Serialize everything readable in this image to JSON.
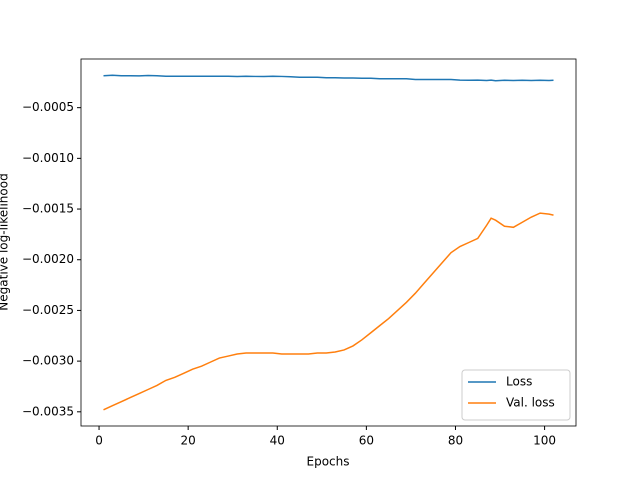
{
  "chart_data": {
    "type": "line",
    "x_label": "Epochs",
    "y_label": "Negative log-likelihood",
    "x": [
      1,
      3,
      5,
      7,
      9,
      11,
      13,
      15,
      17,
      19,
      21,
      23,
      25,
      27,
      29,
      31,
      33,
      35,
      37,
      39,
      41,
      43,
      45,
      47,
      49,
      51,
      53,
      55,
      57,
      59,
      61,
      63,
      65,
      67,
      69,
      71,
      73,
      75,
      77,
      79,
      81,
      83,
      85,
      87,
      88,
      89,
      91,
      93,
      95,
      97,
      99,
      101,
      102
    ],
    "series": [
      {
        "name": "Loss",
        "color": "#1f77b4",
        "values": [
          -0.000185,
          -0.00018,
          -0.000185,
          -0.000185,
          -0.000187,
          -0.000183,
          -0.000185,
          -0.00019,
          -0.00019,
          -0.00019,
          -0.00019,
          -0.00019,
          -0.00019,
          -0.00019,
          -0.00019,
          -0.000192,
          -0.00019,
          -0.000192,
          -0.000193,
          -0.00019,
          -0.000192,
          -0.000195,
          -0.0002,
          -0.0002,
          -0.0002,
          -0.000205,
          -0.000205,
          -0.000207,
          -0.000208,
          -0.00021,
          -0.00021,
          -0.000215,
          -0.000215,
          -0.000215,
          -0.000215,
          -0.000222,
          -0.000222,
          -0.000222,
          -0.000222,
          -0.000222,
          -0.000228,
          -0.00023,
          -0.000228,
          -0.000232,
          -0.000228,
          -0.000235,
          -0.00023,
          -0.000232,
          -0.00023,
          -0.000232,
          -0.00023,
          -0.000232,
          -0.00023
        ]
      },
      {
        "name": "Val. loss",
        "color": "#ff7f0e",
        "values": [
          -0.00348,
          -0.00344,
          -0.0034,
          -0.00336,
          -0.00332,
          -0.00328,
          -0.00324,
          -0.00319,
          -0.00316,
          -0.00312,
          -0.00308,
          -0.00305,
          -0.00301,
          -0.00297,
          -0.00295,
          -0.00293,
          -0.00292,
          -0.00292,
          -0.00292,
          -0.00292,
          -0.00293,
          -0.00293,
          -0.00293,
          -0.00293,
          -0.00292,
          -0.00292,
          -0.00291,
          -0.00289,
          -0.00285,
          -0.00279,
          -0.00272,
          -0.00265,
          -0.00258,
          -0.0025,
          -0.00242,
          -0.00233,
          -0.00223,
          -0.00213,
          -0.00203,
          -0.00193,
          -0.00187,
          -0.00183,
          -0.00179,
          -0.00166,
          -0.00159,
          -0.00161,
          -0.00167,
          -0.00168,
          -0.00163,
          -0.00158,
          -0.00154,
          -0.00155,
          -0.00156
        ]
      }
    ],
    "xlim": [
      -4.05,
      107.05
    ],
    "xticks": [
      0,
      20,
      40,
      60,
      80,
      100
    ],
    "ylim": [
      -0.00364,
      -2e-05
    ],
    "yticks": [
      {
        "value": -0.0035,
        "label": "−0.0035"
      },
      {
        "value": -0.003,
        "label": "−0.0030"
      },
      {
        "value": -0.0025,
        "label": "−0.0025"
      },
      {
        "value": -0.002,
        "label": "−0.0020"
      },
      {
        "value": -0.0015,
        "label": "−0.0015"
      },
      {
        "value": -0.001,
        "label": "−0.0010"
      },
      {
        "value": -0.0005,
        "label": "−0.0005"
      }
    ],
    "legend": "lower right"
  }
}
